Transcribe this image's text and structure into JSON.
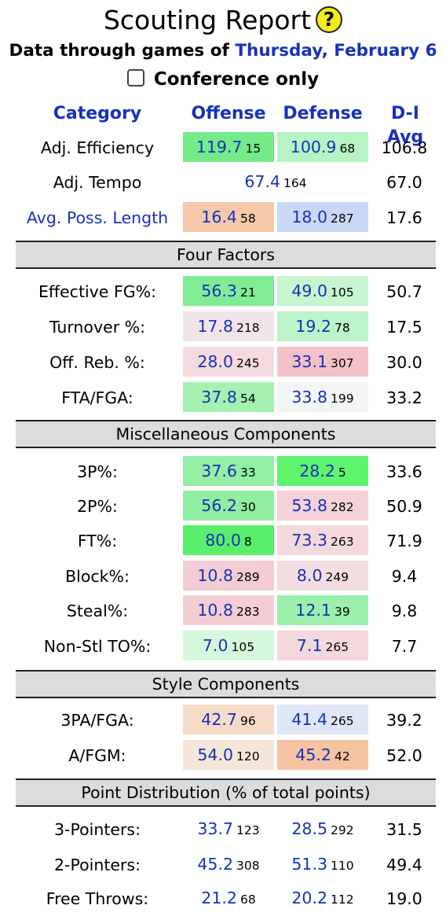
{
  "title": "Scouting Report",
  "help_glyph": "?",
  "subtitle_prefix": "Data through games of",
  "subtitle_date": "Thursday, February 6",
  "conference_only_label": "Conference only",
  "headers": {
    "category": "Category",
    "offense": "Offense",
    "defense": "Defense",
    "avg": "D-I Avg"
  },
  "top_rows": [
    {
      "label": "Adj. Efficiency",
      "link": false,
      "off": {
        "value": "119.7",
        "rank": "15",
        "color": "#74ea89"
      },
      "def": {
        "value": "100.9",
        "rank": "68",
        "color": "#b6f4c3"
      },
      "avg": "106.8"
    },
    {
      "label": "Adj. Tempo",
      "link": false,
      "combined": {
        "value": "67.4",
        "rank": "164"
      },
      "avg": "67.0"
    },
    {
      "label": "Avg. Poss. Length",
      "link": true,
      "off": {
        "value": "16.4",
        "rank": "58",
        "color": "#f6c8aa"
      },
      "def": {
        "value": "18.0",
        "rank": "287",
        "color": "#c9d8f5"
      },
      "avg": "17.6"
    }
  ],
  "sections": [
    {
      "title": "Four Factors",
      "rows": [
        {
          "label": "Effective FG%:",
          "off": {
            "value": "56.3",
            "rank": "21",
            "color": "#81ec94"
          },
          "def": {
            "value": "49.0",
            "rank": "105",
            "color": "#c6f5cf"
          },
          "avg": "50.7"
        },
        {
          "label": "Turnover %:",
          "off": {
            "value": "17.8",
            "rank": "218",
            "color": "#f0e6ea"
          },
          "def": {
            "value": "19.2",
            "rank": "78",
            "color": "#bdf3c8"
          },
          "avg": "17.5"
        },
        {
          "label": "Off. Reb. %:",
          "off": {
            "value": "28.0",
            "rank": "245",
            "color": "#f5dbe0"
          },
          "def": {
            "value": "33.1",
            "rank": "307",
            "color": "#f3c1c8"
          },
          "avg": "30.0"
        },
        {
          "label": "FTA/FGA:",
          "off": {
            "value": "37.8",
            "rank": "54",
            "color": "#a4f1b2"
          },
          "def": {
            "value": "33.8",
            "rank": "199",
            "color": "#f3f6f4"
          },
          "avg": "33.2"
        }
      ]
    },
    {
      "title": "Miscellaneous Components",
      "rows": [
        {
          "label": "3P%:",
          "off": {
            "value": "37.6",
            "rank": "33",
            "color": "#93ef a4"
          },
          "def": {
            "value": "28.2",
            "rank": "5",
            "color": "#5ef46e"
          },
          "avg": "33.6"
        },
        {
          "label": "2P%:",
          "off": {
            "value": "56.2",
            "rank": "30",
            "color": "#90ee a1"
          },
          "def": {
            "value": "53.8",
            "rank": "282",
            "color": "#f3d2d8"
          },
          "avg": "50.9"
        },
        {
          "label": "FT%:",
          "off": {
            "value": "80.0",
            "rank": "8",
            "color": "#5aef6a"
          },
          "def": {
            "value": "73.3",
            "rank": "263",
            "color": "#f3d8dd"
          },
          "avg": "71.9"
        },
        {
          "label": "Block%:",
          "off": {
            "value": "10.8",
            "rank": "289",
            "color": "#f3cdd3"
          },
          "def": {
            "value": "8.0",
            "rank": "249",
            "color": "#f3dde1"
          },
          "avg": "9.4"
        },
        {
          "label": "Steal%:",
          "off": {
            "value": "10.8",
            "rank": "283",
            "color": "#f3cfd5"
          },
          "def": {
            "value": "12.1",
            "rank": "39",
            "color": "#9bf0ab"
          },
          "avg": "9.8"
        },
        {
          "label": "Non-Stl TO%:",
          "off": {
            "value": "7.0",
            "rank": "105",
            "color": "#d6f7dc"
          },
          "def": {
            "value": "7.1",
            "rank": "265",
            "color": "#f3d8dd"
          },
          "avg": "7.7"
        }
      ]
    },
    {
      "title": "Style Components",
      "rows": [
        {
          "label": "3PA/FGA:",
          "off": {
            "value": "42.7",
            "rank": "96",
            "color": "#f6dcc8"
          },
          "def": {
            "value": "41.4",
            "rank": "265",
            "color": "#dfe6f5"
          },
          "avg": "39.2"
        },
        {
          "label": "A/FGM:",
          "off": {
            "value": "54.0",
            "rank": "120",
            "color": "#f6e6da"
          },
          "def": {
            "value": "45.2",
            "rank": "42",
            "color": "#f6c3a2"
          },
          "avg": "52.0"
        }
      ]
    },
    {
      "title": "Point Distribution (% of total points)",
      "rows": [
        {
          "label": "3-Pointers:",
          "off": {
            "value": "33.7",
            "rank": "123",
            "color": "#ffffff"
          },
          "def": {
            "value": "28.5",
            "rank": "292",
            "color": "#ffffff"
          },
          "avg": "31.5"
        },
        {
          "label": "2-Pointers:",
          "off": {
            "value": "45.2",
            "rank": "308",
            "color": "#ffffff"
          },
          "def": {
            "value": "51.3",
            "rank": "110",
            "color": "#ffffff"
          },
          "avg": "49.4"
        },
        {
          "label": "Free Throws:",
          "off": {
            "value": "21.2",
            "rank": "68",
            "color": "#ffffff"
          },
          "def": {
            "value": "20.2",
            "rank": "112",
            "color": "#ffffff"
          },
          "avg": "19.0"
        }
      ]
    }
  ]
}
